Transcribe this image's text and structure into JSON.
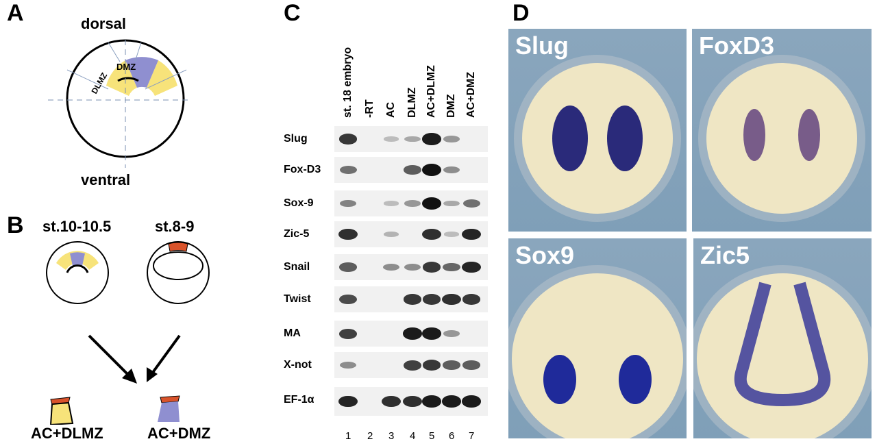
{
  "panels": {
    "A": "A",
    "B": "B",
    "C": "C",
    "D": "D"
  },
  "panelA": {
    "top": "dorsal",
    "bottom": "ventral",
    "dlmz": "DLMZ",
    "dmz": "DMZ",
    "colors": {
      "dlmz": "#f7e37a",
      "dmz": "#8f8fd0"
    }
  },
  "panelB": {
    "stage1": "st.10-10.5",
    "stage2": "st.8-9",
    "combo1": "AC+DLMZ",
    "combo2": "AC+DMZ",
    "colors": {
      "ac": "#d9532b"
    }
  },
  "panelC": {
    "lanes": [
      "st. 18 embryo",
      "-RT",
      "AC",
      "DLMZ",
      "AC+DLMZ",
      "DMZ",
      "AC+DMZ"
    ],
    "lane_numbers": [
      "1",
      "2",
      "3",
      "4",
      "5",
      "6",
      "7"
    ],
    "genes": [
      {
        "name": "Slug",
        "bands": [
          0.8,
          0,
          0.1,
          0.2,
          0.95,
          0.3,
          0
        ]
      },
      {
        "name": "Fox-D3",
        "bands": [
          0.5,
          0,
          0,
          0.6,
          1,
          0.35,
          0
        ]
      },
      {
        "name": "Sox-9",
        "bands": [
          0.4,
          0,
          0.1,
          0.3,
          1,
          0.2,
          0.5
        ]
      },
      {
        "name": "Zic-5",
        "bands": [
          0.85,
          0,
          0.15,
          0,
          0.85,
          0.1,
          0.9
        ]
      },
      {
        "name": "Snail",
        "bands": [
          0.6,
          0,
          0.35,
          0.35,
          0.8,
          0.55,
          0.9
        ]
      },
      {
        "name": "Twist",
        "bands": [
          0.7,
          0,
          0,
          0.8,
          0.8,
          0.85,
          0.8
        ]
      },
      {
        "name": "MA",
        "bands": [
          0.75,
          0,
          0,
          0.95,
          0.95,
          0.3,
          0
        ]
      },
      {
        "name": "X-not",
        "bands": [
          0.35,
          0,
          0,
          0.75,
          0.8,
          0.6,
          0.6
        ]
      },
      {
        "name": "EF-1α",
        "bands": [
          0.9,
          0,
          0.85,
          0.85,
          0.95,
          0.95,
          0.95
        ]
      }
    ]
  },
  "panelD": {
    "images": [
      {
        "label": "Slug"
      },
      {
        "label": "FoxD3"
      },
      {
        "label": "Sox9"
      },
      {
        "label": "Zic5"
      }
    ],
    "colors": {
      "stain": "#2a2a7a",
      "embryo": "#efe6c4",
      "background": "#7f9fb8"
    }
  }
}
